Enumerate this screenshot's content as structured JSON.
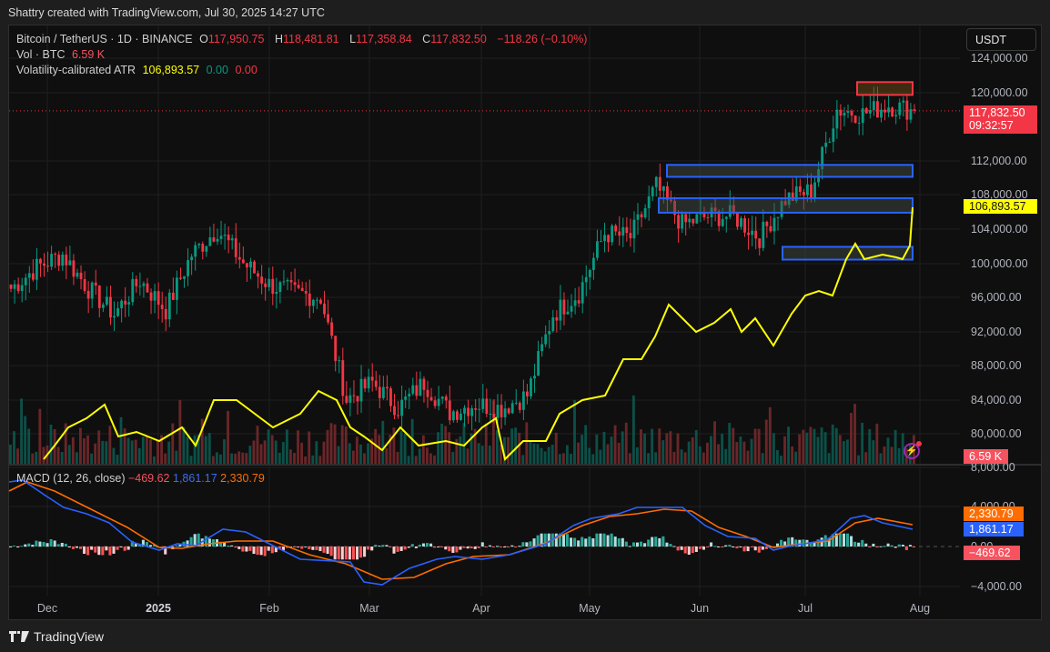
{
  "credit": "Shattry created with TradingView.com, Jul 30, 2025 14:27 UTC",
  "legend": {
    "symbol": "Bitcoin / TetherUS · 1D · BINANCE",
    "o_label": "O",
    "o": "117,950.75",
    "h_label": "H",
    "h": "118,481.81",
    "l_label": "L",
    "l": "117,358.84",
    "c_label": "C",
    "c": "117,832.50",
    "change": "−118.26 (−0.10%)",
    "vol_label": "Vol · BTC",
    "vol": "6.59 K",
    "atr_label": "Volatility-calibrated ATR",
    "atr": "106,893.57",
    "atr_v2": "0.00",
    "atr_v3": "0.00"
  },
  "macd_legend": {
    "label": "MACD (12, 26, close)",
    "hist": "−469.62",
    "macd": "1,861.17",
    "signal": "2,330.79"
  },
  "currency_button": "USDT",
  "price_axis": [
    "124,000.00",
    "120,000.00",
    "112,000.00",
    "108,000.00",
    "104,000.00",
    "100,000.00",
    "96,000.00",
    "92,000.00",
    "88,000.00",
    "84,000.00",
    "80,000.00"
  ],
  "macd_axis": [
    "8,000.00",
    "4,000.00",
    "0.00",
    "−4,000.00"
  ],
  "tags": {
    "last_price": "117,832.50",
    "countdown": "09:32:57",
    "atr": "106,893.57",
    "volume": "6.59 K",
    "signal": "2,330.79",
    "macd": "1,861.17",
    "hist": "−469.62"
  },
  "time_axis": [
    "Dec",
    "2025",
    "Feb",
    "Mar",
    "Apr",
    "May",
    "Jun",
    "Jul",
    "Aug"
  ],
  "footer": "TradingView",
  "colors": {
    "up": "#089981",
    "down": "#f23645",
    "atr": "#ffff00",
    "macd": "#2962ff",
    "signal": "#ff6d00",
    "box_blue": "#2962ff",
    "box_red": "#f23645"
  },
  "chart_data": {
    "type": "candlestick",
    "title": "Bitcoin / TetherUS · 1D · BINANCE",
    "x_ticks": [
      "Dec",
      "2025",
      "Feb",
      "Mar",
      "Apr",
      "May",
      "Jun",
      "Jul",
      "Aug"
    ],
    "ylim": [
      78000,
      125000
    ],
    "last": {
      "open": 117950.75,
      "high": 118481.81,
      "low": 117358.84,
      "close": 117832.5,
      "change": -118.26,
      "change_pct": -0.1
    },
    "approx_closes_weekly": [
      {
        "date": "2024-11-25",
        "close": 97000
      },
      {
        "date": "2024-12-02",
        "close": 99500
      },
      {
        "date": "2024-12-09",
        "close": 101000
      },
      {
        "date": "2024-12-16",
        "close": 97000
      },
      {
        "date": "2024-12-23",
        "close": 94000
      },
      {
        "date": "2024-12-30",
        "close": 98000
      },
      {
        "date": "2025-01-06",
        "close": 94500
      },
      {
        "date": "2025-01-13",
        "close": 101000
      },
      {
        "date": "2025-01-20",
        "close": 104000
      },
      {
        "date": "2025-01-27",
        "close": 100000
      },
      {
        "date": "2025-02-03",
        "close": 97500
      },
      {
        "date": "2025-02-10",
        "close": 96500
      },
      {
        "date": "2025-02-17",
        "close": 96000
      },
      {
        "date": "2025-02-24",
        "close": 84000
      },
      {
        "date": "2025-03-03",
        "close": 86000
      },
      {
        "date": "2025-03-10",
        "close": 83000
      },
      {
        "date": "2025-03-17",
        "close": 86000
      },
      {
        "date": "2025-03-24",
        "close": 82500
      },
      {
        "date": "2025-03-31",
        "close": 83500
      },
      {
        "date": "2025-04-07",
        "close": 83000
      },
      {
        "date": "2025-04-14",
        "close": 84500
      },
      {
        "date": "2025-04-21",
        "close": 94000
      },
      {
        "date": "2025-04-28",
        "close": 96500
      },
      {
        "date": "2025-05-05",
        "close": 103500
      },
      {
        "date": "2025-05-12",
        "close": 103000
      },
      {
        "date": "2025-05-19",
        "close": 109000
      },
      {
        "date": "2025-05-26",
        "close": 104500
      },
      {
        "date": "2025-06-02",
        "close": 105500
      },
      {
        "date": "2025-06-09",
        "close": 105500
      },
      {
        "date": "2025-06-16",
        "close": 103000
      },
      {
        "date": "2025-06-23",
        "close": 107500
      },
      {
        "date": "2025-06-30",
        "close": 108500
      },
      {
        "date": "2025-07-07",
        "close": 118000
      },
      {
        "date": "2025-07-14",
        "close": 117500
      },
      {
        "date": "2025-07-21",
        "close": 118500
      },
      {
        "date": "2025-07-28",
        "close": 117832.5
      }
    ],
    "atr_indicator": {
      "name": "Volatility-calibrated ATR",
      "last": 106893.57
    },
    "zones": [
      {
        "color": "red",
        "low": 119700,
        "high": 121200,
        "from": "2025-07-14",
        "to": "2025-07-30"
      },
      {
        "color": "blue",
        "low": 110100,
        "high": 111500,
        "from": "2025-05-22",
        "to": "2025-07-30"
      },
      {
        "color": "blue",
        "low": 105900,
        "high": 107600,
        "from": "2025-05-21",
        "to": "2025-07-30"
      },
      {
        "color": "blue",
        "low": 100400,
        "high": 101900,
        "from": "2025-06-23",
        "to": "2025-07-30"
      }
    ],
    "macd": {
      "params": "12, 26, close",
      "histogram": -469.62,
      "macd": 1861.17,
      "signal": 2330.79,
      "ylim": [
        -4500,
        8000
      ]
    },
    "volume_last": "6.59 K"
  }
}
